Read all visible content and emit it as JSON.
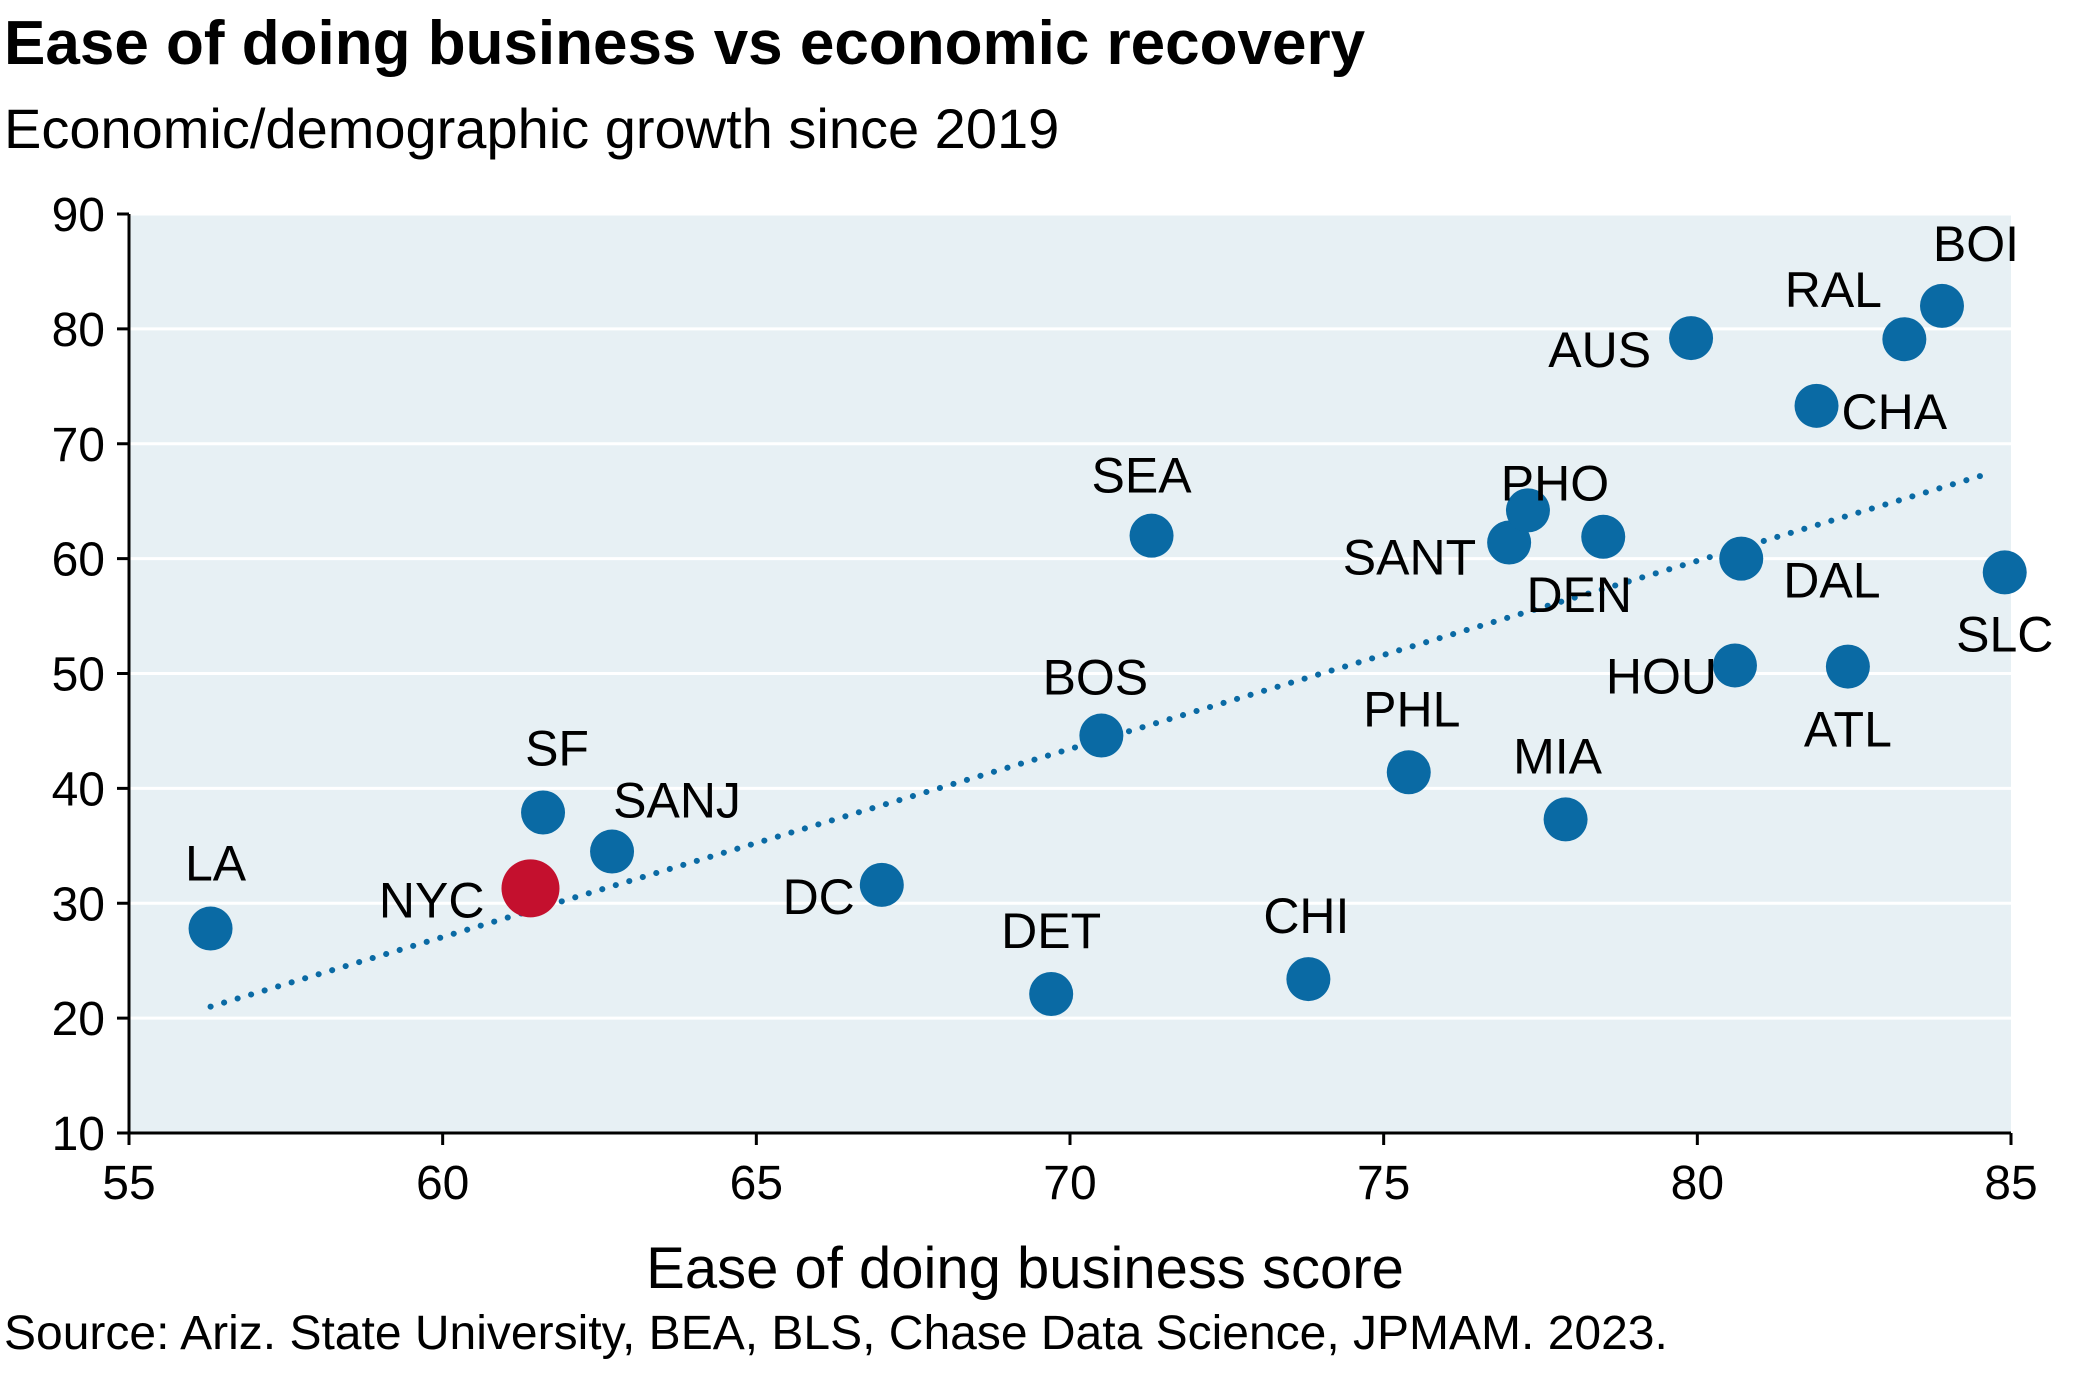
{
  "header": {
    "title": "Ease of doing business vs economic recovery",
    "subtitle": "Economic/demographic growth since 2019"
  },
  "footer": {
    "source": "Source: Ariz. State University, BEA, BLS, Chase Data Science, JPMAM. 2023."
  },
  "chart_data": {
    "type": "scatter",
    "title": "Ease of doing business vs economic recovery",
    "subtitle": "Economic/demographic growth since 2019",
    "xlabel": "Ease of doing business score",
    "ylabel": "",
    "xlim": [
      55,
      85
    ],
    "ylim": [
      10,
      90
    ],
    "xticks": [
      55,
      60,
      65,
      70,
      75,
      80,
      85
    ],
    "yticks": [
      10,
      20,
      30,
      40,
      50,
      60,
      70,
      80,
      90
    ],
    "grid": "horizontal",
    "colors": {
      "point": "#0a6aa4",
      "highlight": "#c4102e",
      "plot_bg": "#e7f0f4",
      "trend": "#0a6aa4"
    },
    "points": [
      {
        "label": "LA",
        "x": 56.3,
        "y": 27.8
      },
      {
        "label": "NYC",
        "x": 61.4,
        "y": 31.3,
        "highlight": true
      },
      {
        "label": "SF",
        "x": 61.6,
        "y": 37.9
      },
      {
        "label": "SANJ",
        "x": 62.7,
        "y": 34.5
      },
      {
        "label": "DC",
        "x": 67.0,
        "y": 31.6
      },
      {
        "label": "DET",
        "x": 69.7,
        "y": 22.1
      },
      {
        "label": "BOS",
        "x": 70.5,
        "y": 44.6
      },
      {
        "label": "SEA",
        "x": 71.3,
        "y": 62.0
      },
      {
        "label": "CHI",
        "x": 73.8,
        "y": 23.4
      },
      {
        "label": "PHL",
        "x": 75.4,
        "y": 41.4
      },
      {
        "label": "SANT",
        "x": 77.0,
        "y": 61.4
      },
      {
        "label": "PHO",
        "x": 77.3,
        "y": 64.2
      },
      {
        "label": "MIA",
        "x": 77.9,
        "y": 37.3
      },
      {
        "label": "DEN",
        "x": 78.5,
        "y": 61.9
      },
      {
        "label": "AUS",
        "x": 79.9,
        "y": 79.2
      },
      {
        "label": "HOU",
        "x": 80.6,
        "y": 50.7
      },
      {
        "label": "DAL",
        "x": 80.7,
        "y": 60.0
      },
      {
        "label": "CHA",
        "x": 81.9,
        "y": 73.3
      },
      {
        "label": "ATL",
        "x": 82.4,
        "y": 50.6
      },
      {
        "label": "RAL",
        "x": 83.3,
        "y": 79.1
      },
      {
        "label": "BOI",
        "x": 83.9,
        "y": 82.0
      },
      {
        "label": "SLC",
        "x": 84.9,
        "y": 58.8
      }
    ],
    "trendline": {
      "style": "dotted",
      "x": [
        56.3,
        84.7
      ],
      "y": [
        21.0,
        67.5
      ]
    }
  }
}
